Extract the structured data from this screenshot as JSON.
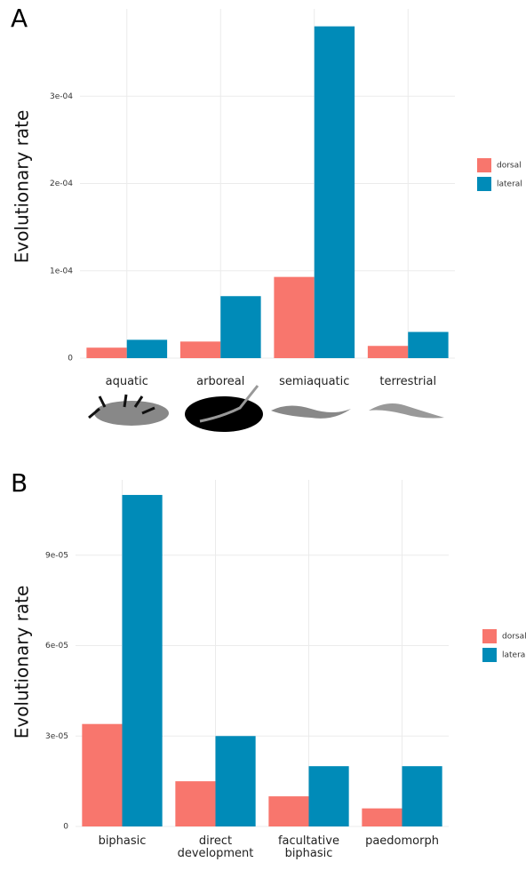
{
  "chart_data": [
    {
      "type": "bar",
      "label": "A",
      "y_label": "Evolutionary rate",
      "categories": [
        "aquatic",
        "arboreal",
        "semiaquatic",
        "terrestrial"
      ],
      "series": [
        {
          "name": "dorsal",
          "color": "#F8766D",
          "values": [
            1.2e-05,
            1.9e-05,
            9.3e-05,
            1.4e-05
          ]
        },
        {
          "name": "lateral",
          "color": "#008BB8",
          "values": [
            2.1e-05,
            7.1e-05,
            0.00038,
            3e-05
          ]
        }
      ],
      "ylim": [
        0,
        0.0004
      ],
      "yticks": [
        0,
        {
          "value": 0.0001,
          "label": "1e-04"
        },
        {
          "value": 0.0002,
          "label": "2e-04"
        },
        {
          "value": 0.0003,
          "label": "3e-04"
        }
      ],
      "grid": true
    },
    {
      "type": "bar",
      "label": "B",
      "y_label": "Evolutionary rate",
      "categories": [
        "biphasic",
        "direct development",
        "facultative biphasic",
        "paedomorph"
      ],
      "series": [
        {
          "name": "dorsal",
          "color": "#F8766D",
          "values": [
            3.4e-05,
            1.5e-05,
            1e-05,
            6e-06
          ]
        },
        {
          "name": "lateral",
          "color": "#008BB8",
          "values": [
            0.00011,
            3e-05,
            2e-05,
            2e-05
          ]
        }
      ],
      "ylim": [
        0,
        0.000115
      ],
      "yticks": [
        0,
        {
          "value": 3e-05,
          "label": "3e-05"
        },
        {
          "value": 6e-05,
          "label": "6e-05"
        },
        {
          "value": 9e-05,
          "label": "9e-05"
        }
      ],
      "grid": true
    }
  ]
}
